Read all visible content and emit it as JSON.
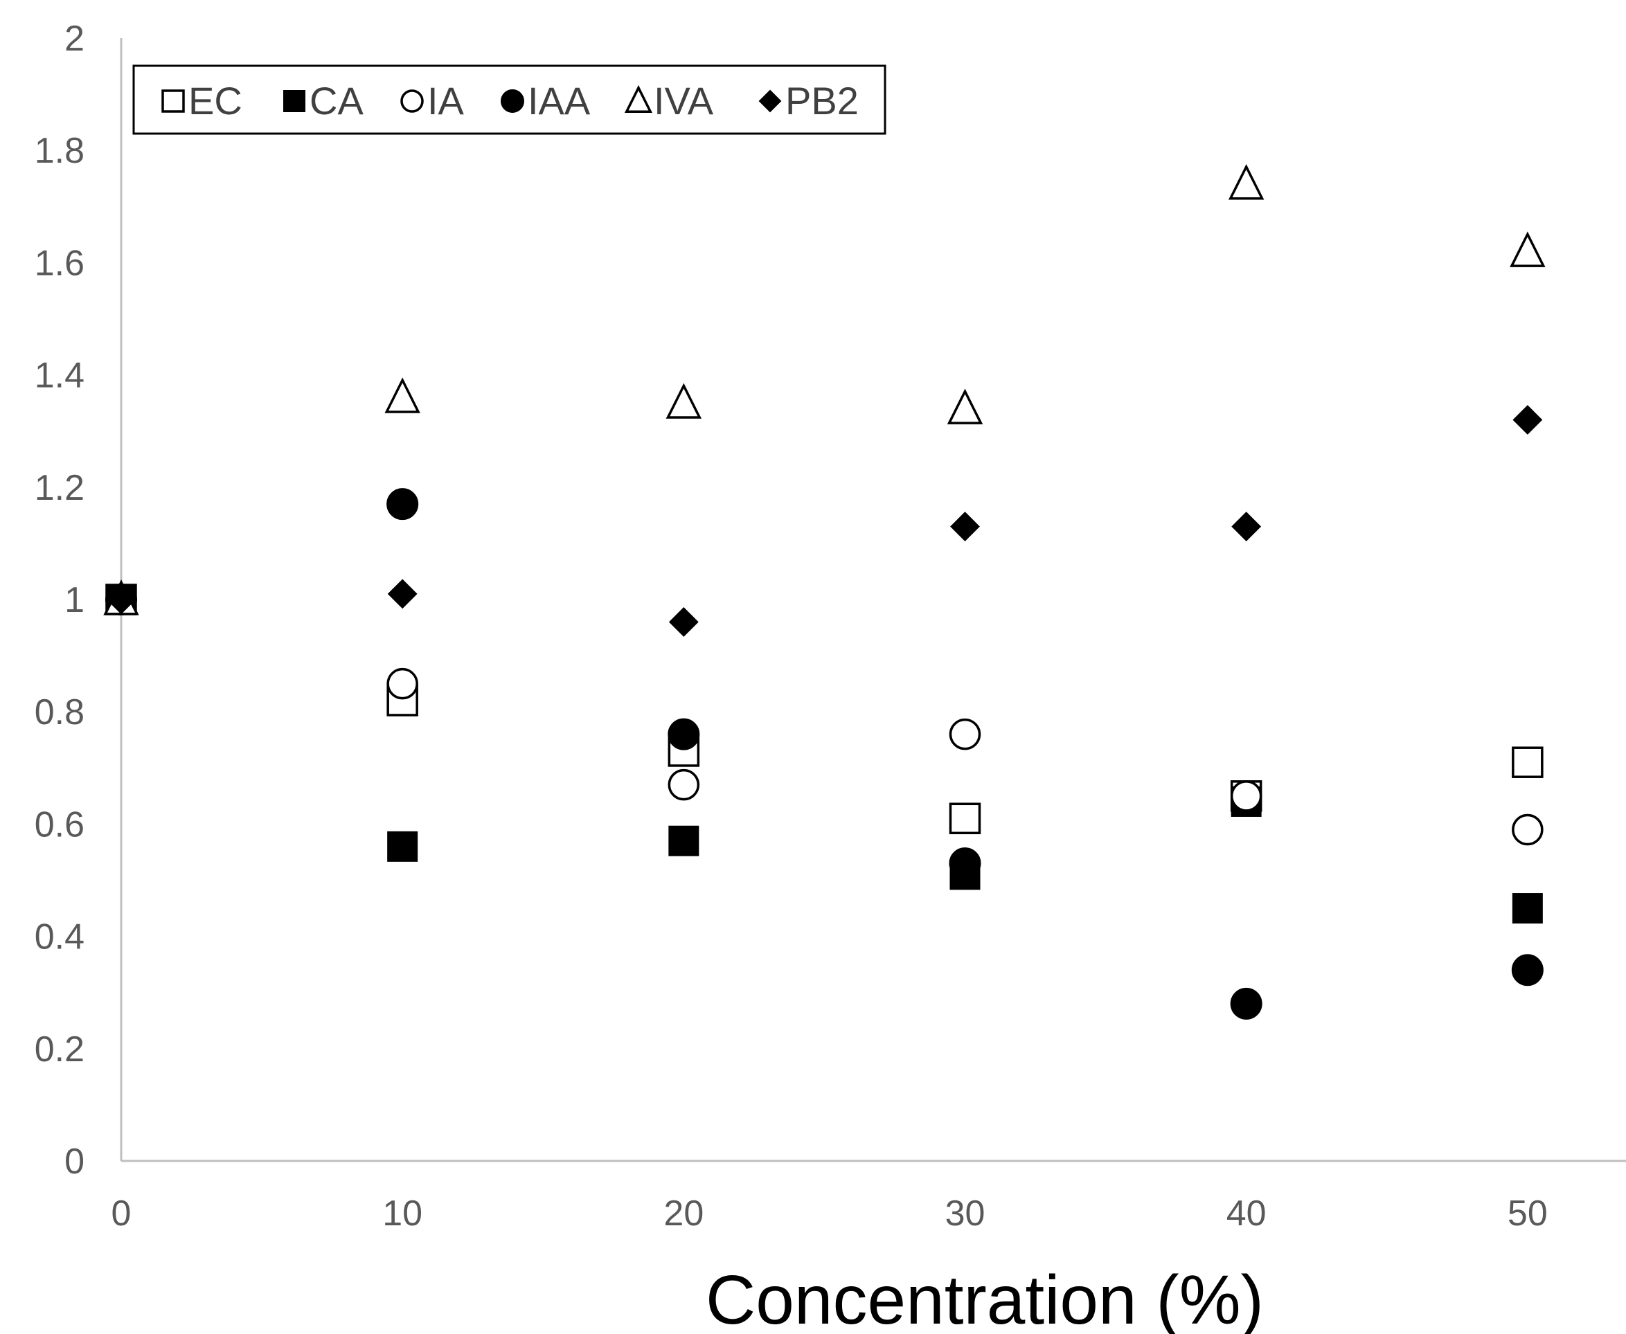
{
  "chart_data": {
    "type": "scatter",
    "title": "",
    "xlabel": "Concentration (%)",
    "ylabel": "",
    "xlim": [
      0,
      53.5
    ],
    "ylim": [
      0,
      2
    ],
    "x_ticks": [
      0,
      10,
      20,
      30,
      40,
      50
    ],
    "y_ticks": [
      0,
      0.2,
      0.4,
      0.6,
      0.8,
      1,
      1.2,
      1.4,
      1.6,
      1.8,
      2
    ],
    "x_tick_labels": [
      "0",
      "10",
      "20",
      "30",
      "40",
      "50"
    ],
    "y_tick_labels": [
      "0",
      "0.2",
      "0.4",
      "0.6",
      "0.8",
      "1",
      "1.2",
      "1.4",
      "1.6",
      "1.8",
      "2"
    ],
    "grid": false,
    "legend_position": "top-left",
    "series": [
      {
        "name": "EC",
        "marker": "square-open",
        "x": [
          0,
          10,
          20,
          30,
          40,
          50
        ],
        "y": [
          1.0,
          0.82,
          0.73,
          0.61,
          0.65,
          0.71
        ]
      },
      {
        "name": "CA",
        "marker": "square-filled",
        "x": [
          0,
          10,
          20,
          30,
          40,
          50
        ],
        "y": [
          1.0,
          0.56,
          0.57,
          0.51,
          0.64,
          0.45
        ]
      },
      {
        "name": "IA",
        "marker": "circle-open",
        "x": [
          0,
          10,
          20,
          30,
          40,
          50
        ],
        "y": [
          1.0,
          0.85,
          0.67,
          0.76,
          0.65,
          0.59
        ]
      },
      {
        "name": "IAA",
        "marker": "circle-filled",
        "x": [
          0,
          10,
          20,
          30,
          40,
          50
        ],
        "y": [
          1.0,
          1.17,
          0.76,
          0.53,
          0.28,
          0.34
        ]
      },
      {
        "name": "IVA",
        "marker": "triangle-open",
        "x": [
          0,
          10,
          20,
          30,
          40,
          50
        ],
        "y": [
          1.0,
          1.36,
          1.35,
          1.34,
          1.74,
          1.62
        ]
      },
      {
        "name": "PB2",
        "marker": "diamond-filled",
        "x": [
          0,
          10,
          20,
          30,
          40,
          50
        ],
        "y": [
          1.0,
          1.01,
          0.96,
          1.13,
          1.13,
          1.32
        ]
      }
    ],
    "colors": {
      "axis": "#bfbfbf",
      "tick_text": "#595959",
      "marker": "#000000",
      "legend_border": "#000000",
      "legend_text": "#404040"
    }
  }
}
